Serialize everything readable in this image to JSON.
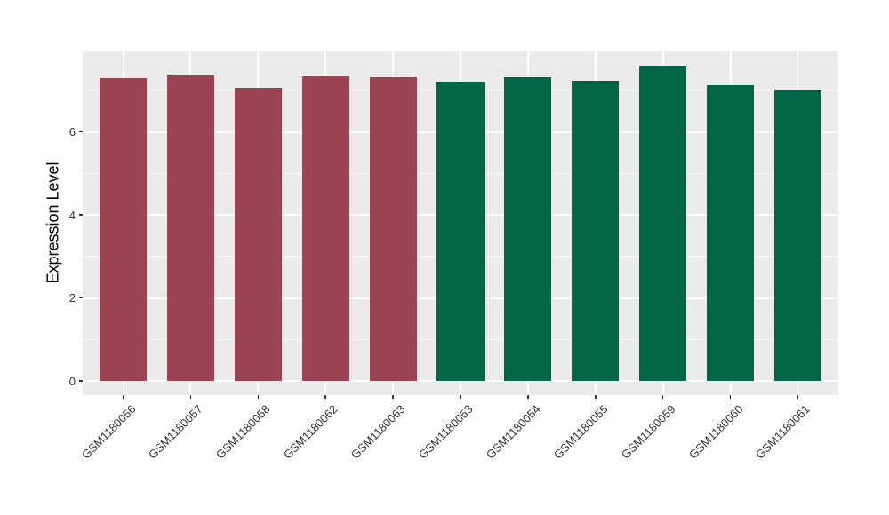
{
  "chart_data": {
    "type": "bar",
    "title": "",
    "xlabel": "",
    "ylabel": "Expression Level",
    "categories": [
      "GSM1180056",
      "GSM1180057",
      "GSM1180058",
      "GSM1180062",
      "GSM1180063",
      "GSM1180053",
      "GSM1180054",
      "GSM1180055",
      "GSM1180059",
      "GSM1180060",
      "GSM1180061"
    ],
    "values": [
      7.29,
      7.36,
      7.07,
      7.35,
      7.31,
      7.21,
      7.31,
      7.23,
      7.59,
      7.12,
      7.02
    ],
    "bar_groups": [
      "maroon",
      "maroon",
      "maroon",
      "maroon",
      "maroon",
      "green",
      "green",
      "green",
      "green",
      "green",
      "green"
    ],
    "group_colors": {
      "maroon": "#9B4454",
      "green": "#006646"
    },
    "ylim": [
      -0.34,
      7.96
    ],
    "yticks": [
      0,
      2,
      4,
      6
    ],
    "yticks_minor": [
      1,
      3,
      5,
      7
    ],
    "bar_width_frac": 0.7,
    "grid": true,
    "legend": "none",
    "panel_bg": "#EBEBEB",
    "grid_color": "#FFFFFF",
    "axis_text_color": "#333333"
  }
}
